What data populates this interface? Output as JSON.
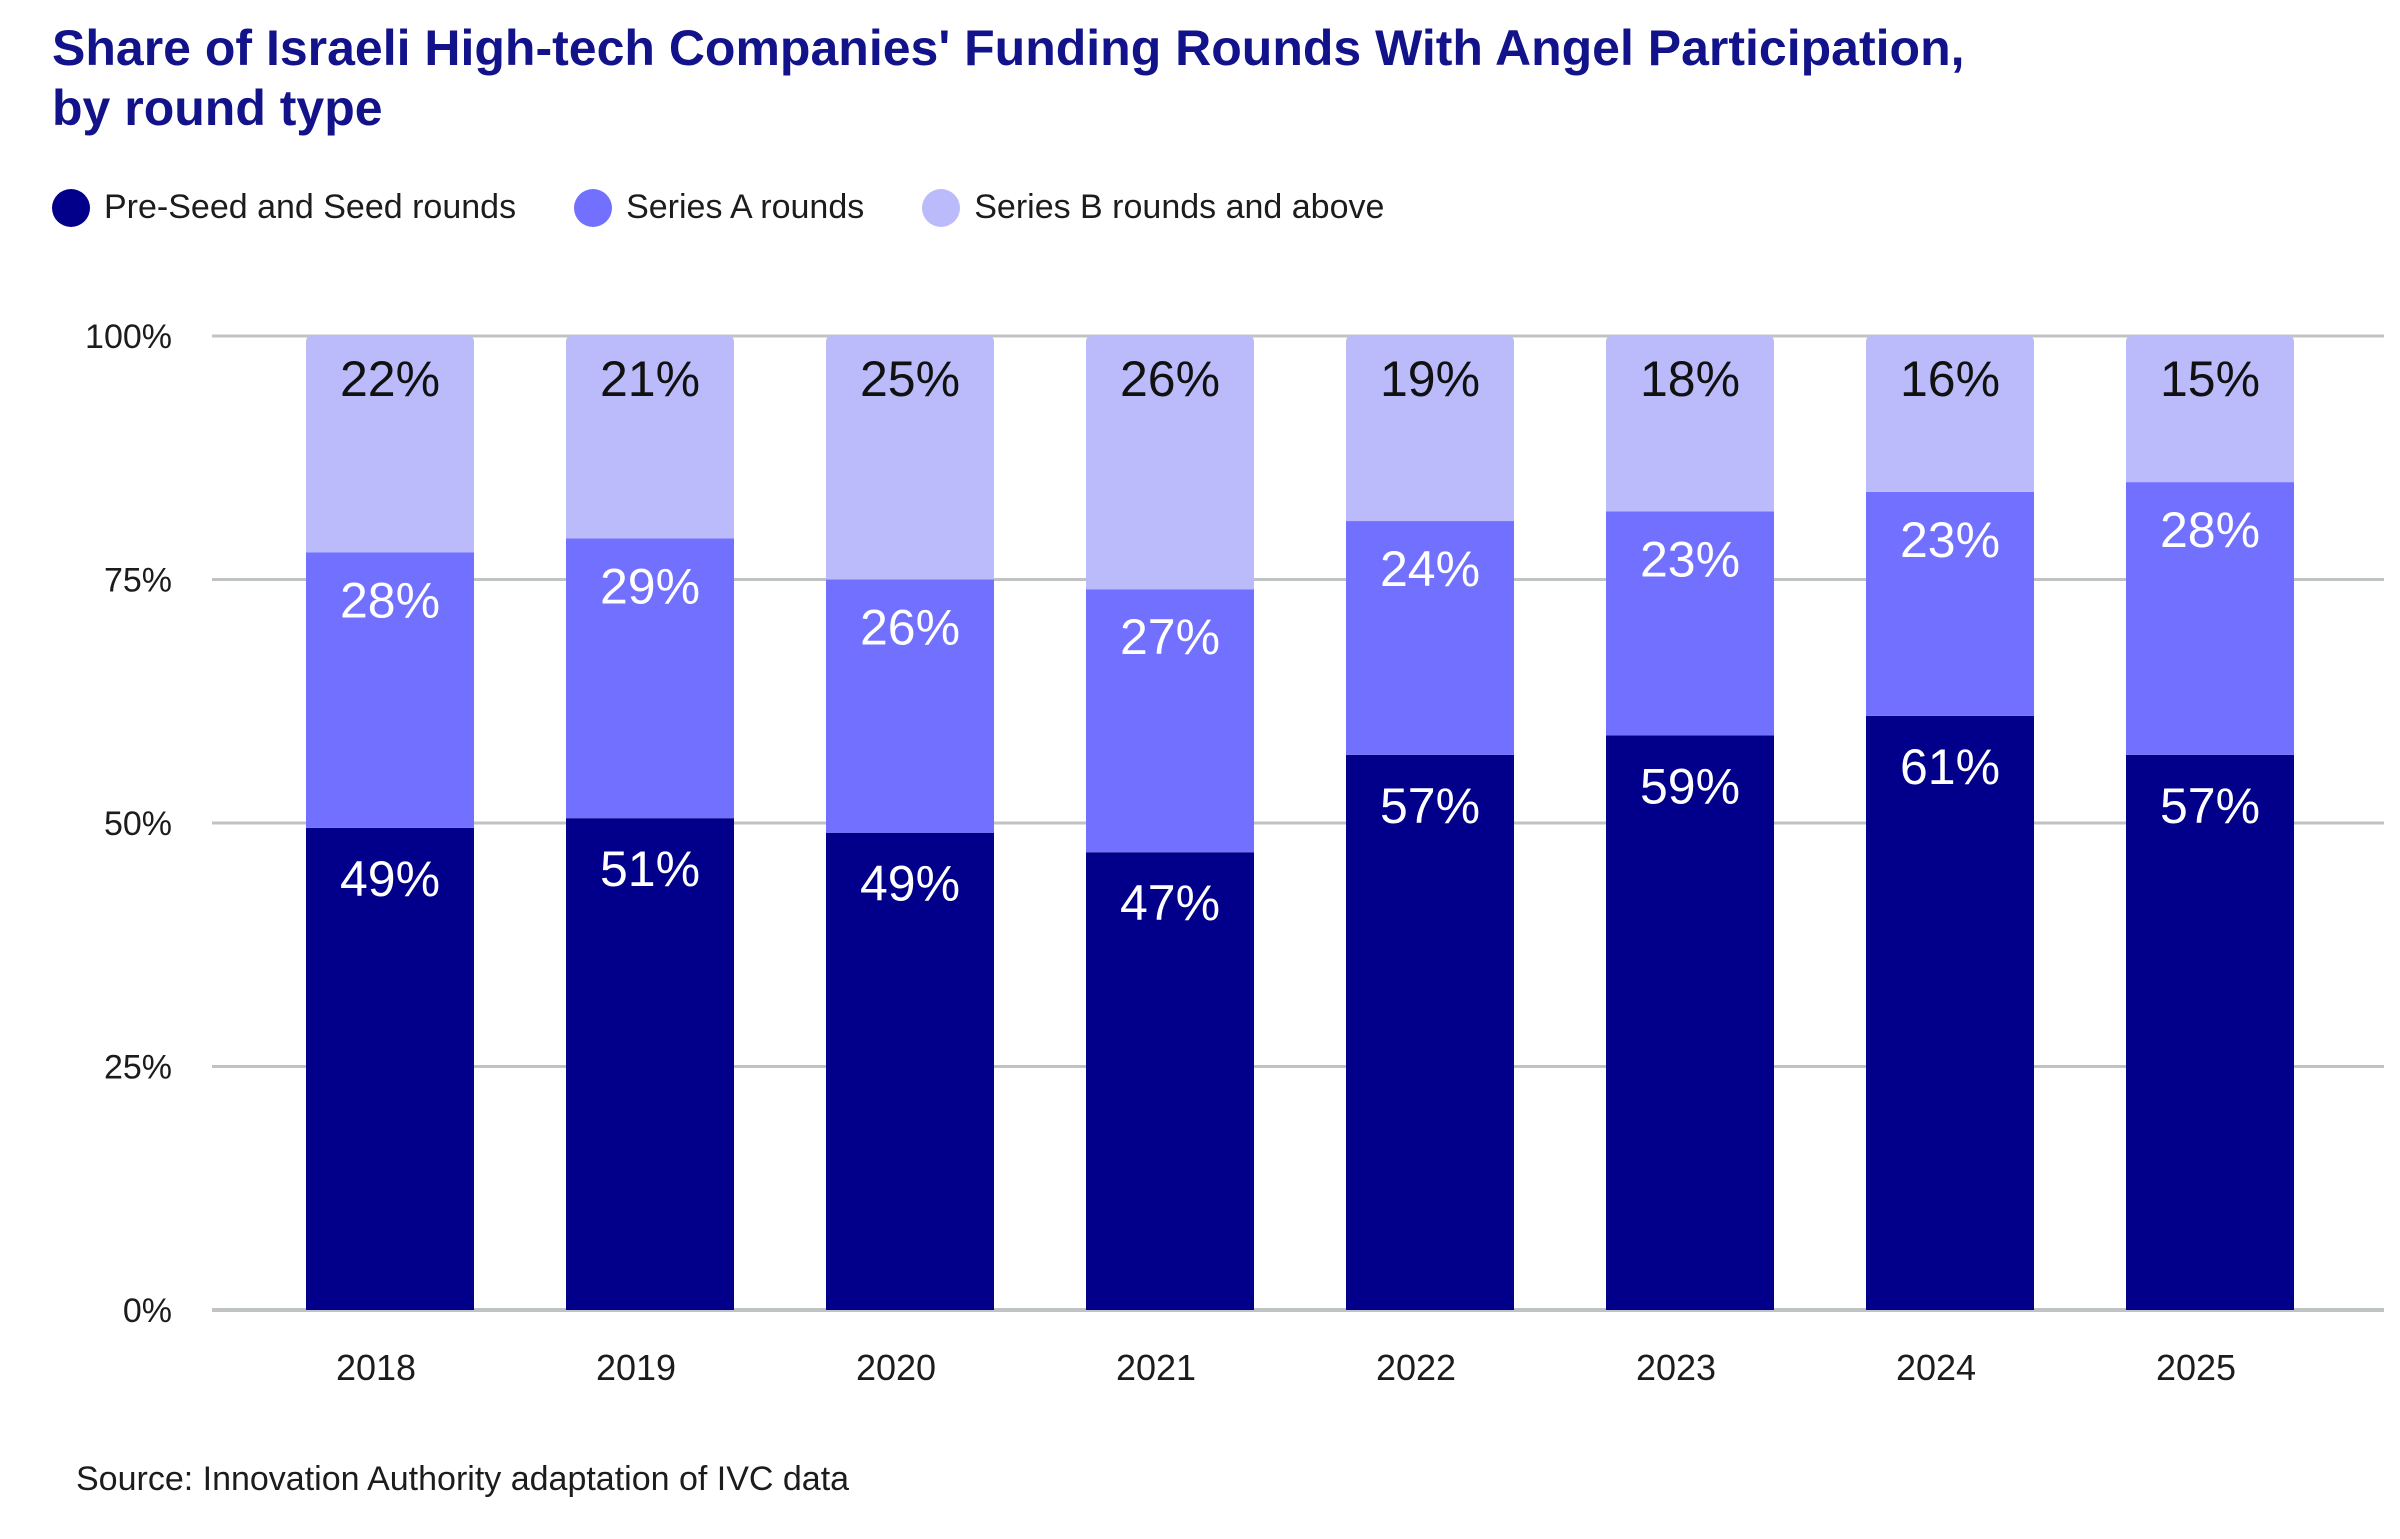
{
  "title": {
    "line1": "Share of Israeli High-tech Companies' Funding Rounds With Angel Participation,",
    "line2": "by round type"
  },
  "legend": [
    {
      "label": "Pre-Seed and Seed rounds",
      "color": "#02008a"
    },
    {
      "label": "Series A rounds",
      "color": "#7270fe"
    },
    {
      "label": "Series B rounds and above",
      "color": "#bbbbfb"
    }
  ],
  "source": "Source: Innovation Authority adaptation of IVC data",
  "colors": {
    "seed": "#02008a",
    "seriesA": "#7270fe",
    "seriesB": "#bbbbfb",
    "grid": "#bfc3c3",
    "label_dark": "#111111",
    "label_light": "#ffffff"
  },
  "chart_data": {
    "type": "bar",
    "stacked": true,
    "categories": [
      "2018",
      "2019",
      "2020",
      "2021",
      "2022",
      "2023",
      "2024",
      "2025"
    ],
    "series": [
      {
        "name": "Pre-Seed and Seed rounds",
        "values": [
          49,
          51,
          49,
          47,
          57,
          59,
          61,
          57
        ]
      },
      {
        "name": "Series A rounds",
        "values": [
          28,
          29,
          26,
          27,
          24,
          23,
          23,
          28
        ]
      },
      {
        "name": "Series B rounds and above",
        "values": [
          22,
          21,
          25,
          26,
          19,
          18,
          16,
          15
        ]
      }
    ],
    "value_suffix": "%",
    "y_ticks": [
      "0%",
      "25%",
      "50%",
      "75%",
      "100%"
    ],
    "ylim": [
      0,
      100
    ],
    "grid": true,
    "legend_position": "top-left"
  }
}
